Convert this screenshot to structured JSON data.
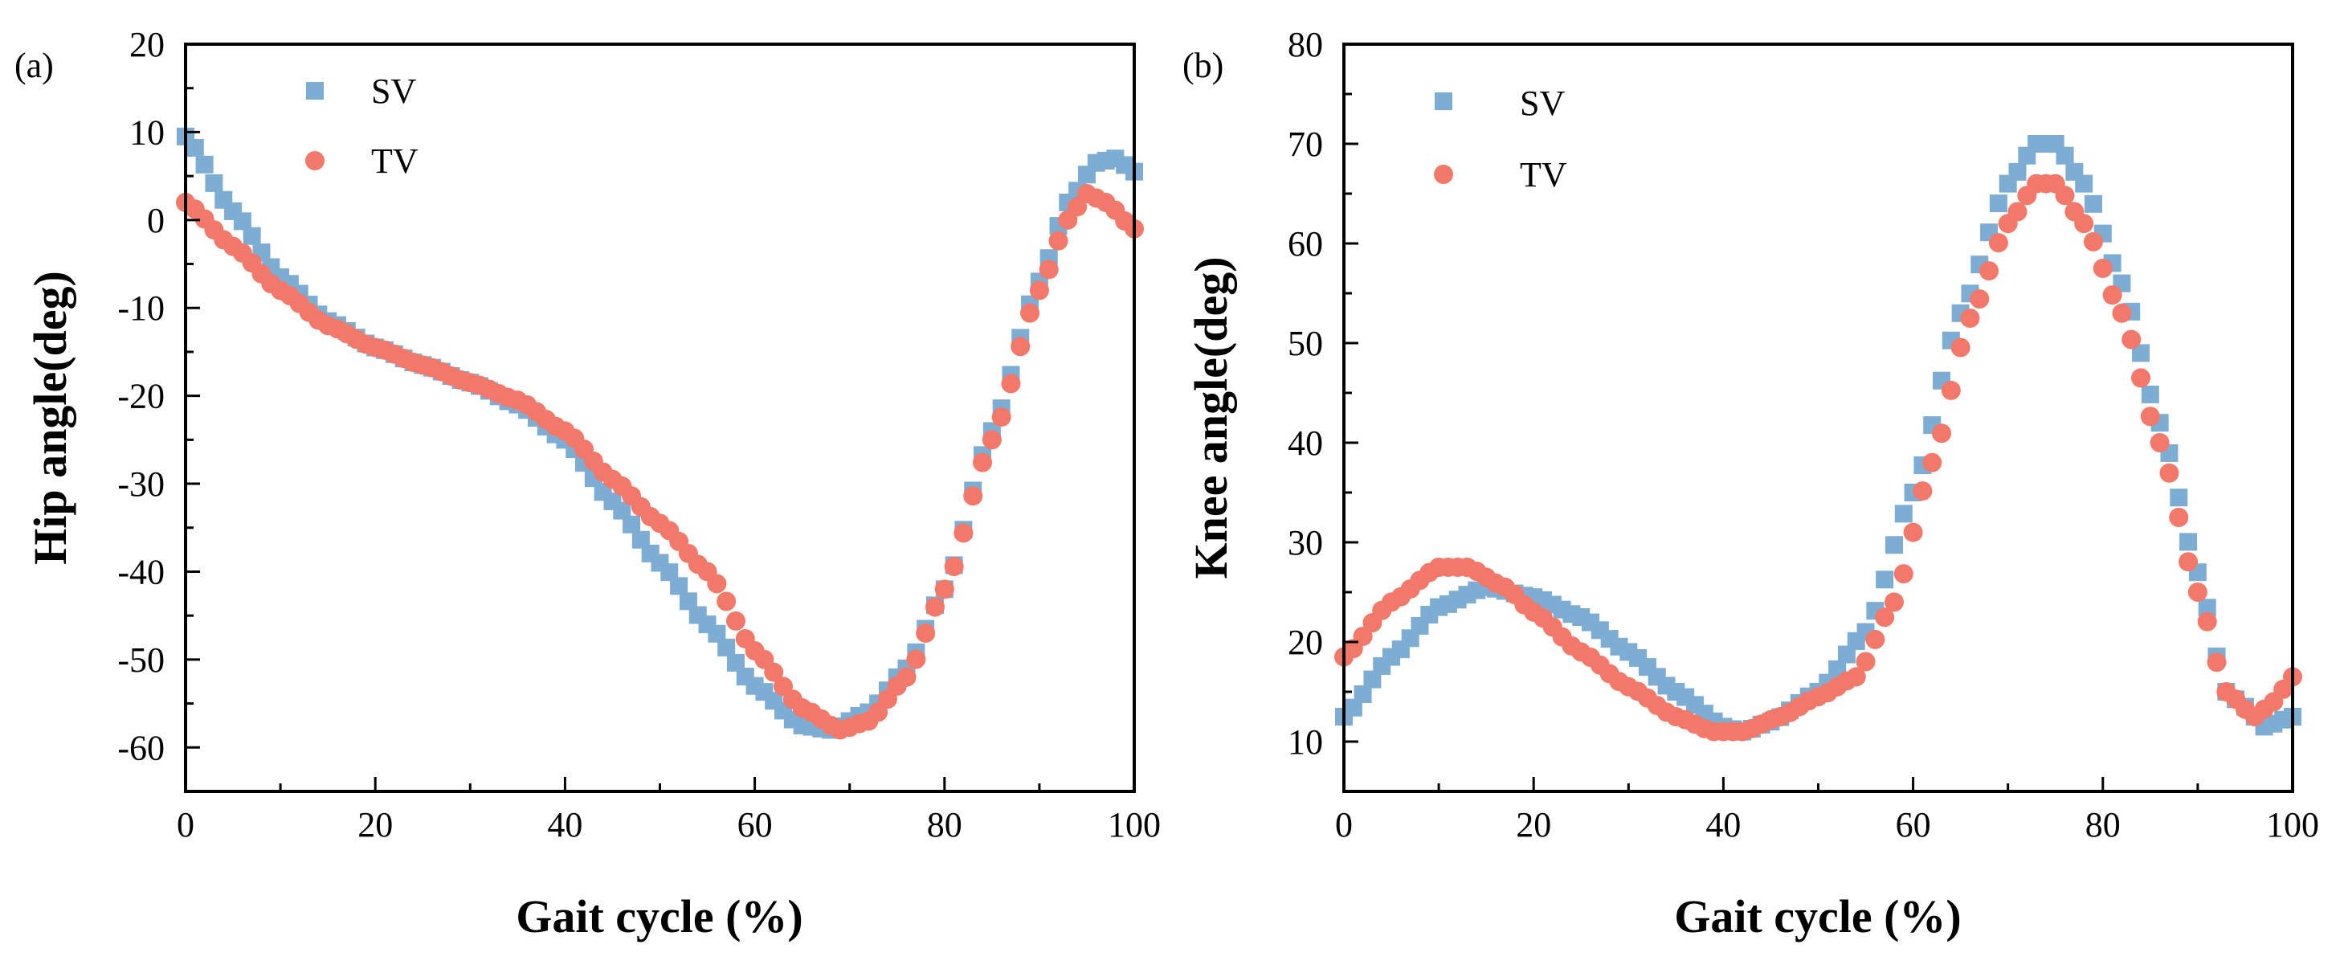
{
  "chart_data": [
    {
      "type": "scatter",
      "panel_label": "(a)",
      "xlabel": "Gait cycle (%)",
      "ylabel": "Hip angle(deg)",
      "xlim": [
        0,
        100
      ],
      "ylim": [
        -65,
        20
      ],
      "xticks": [
        0,
        20,
        40,
        60,
        80,
        100
      ],
      "yticks": [
        -60,
        -50,
        -40,
        -30,
        -20,
        -10,
        0,
        10,
        20
      ],
      "legend_position": "top-left",
      "series": [
        {
          "name": "SV",
          "marker": "square",
          "color": "#7eadd4",
          "knots": [
            [
              0,
              9.5
            ],
            [
              5,
              1
            ],
            [
              10,
              -6.5
            ],
            [
              15,
              -11.5
            ],
            [
              20,
              -14.5
            ],
            [
              25,
              -16.5
            ],
            [
              30,
              -18.5
            ],
            [
              35,
              -21
            ],
            [
              40,
              -25
            ],
            [
              45,
              -32
            ],
            [
              50,
              -39
            ],
            [
              55,
              -46
            ],
            [
              60,
              -53
            ],
            [
              65,
              -57.5
            ],
            [
              68,
              -58
            ],
            [
              72,
              -56
            ],
            [
              76,
              -51
            ],
            [
              80,
              -42
            ],
            [
              85,
              -24
            ],
            [
              90,
              -7
            ],
            [
              93,
              2
            ],
            [
              96,
              6.5
            ],
            [
              98,
              7
            ],
            [
              100,
              5.5
            ]
          ]
        },
        {
          "name": "TV",
          "marker": "circle",
          "color": "#f2786a",
          "knots": [
            [
              0,
              2
            ],
            [
              5,
              -3
            ],
            [
              10,
              -8
            ],
            [
              15,
              -12
            ],
            [
              20,
              -14.5
            ],
            [
              25,
              -16.5
            ],
            [
              30,
              -18.5
            ],
            [
              35,
              -20.5
            ],
            [
              40,
              -24
            ],
            [
              45,
              -29.5
            ],
            [
              50,
              -34.5
            ],
            [
              55,
              -40
            ],
            [
              60,
              -49
            ],
            [
              65,
              -55.5
            ],
            [
              69,
              -58
            ],
            [
              72,
              -57
            ],
            [
              76,
              -52
            ],
            [
              80,
              -42
            ],
            [
              85,
              -25
            ],
            [
              90,
              -8
            ],
            [
              93,
              0
            ],
            [
              95,
              3
            ],
            [
              97,
              2
            ],
            [
              100,
              -1
            ]
          ]
        }
      ]
    },
    {
      "type": "scatter",
      "panel_label": "(b)",
      "xlabel": "Gait cycle (%)",
      "ylabel": "Knee angle(deg)",
      "xlim": [
        0,
        100
      ],
      "ylim": [
        5,
        80
      ],
      "xticks": [
        0,
        20,
        40,
        60,
        80,
        100
      ],
      "yticks": [
        10,
        20,
        30,
        40,
        50,
        60,
        70,
        80
      ],
      "legend_position": "top-left",
      "series": [
        {
          "name": "SV",
          "marker": "square",
          "color": "#7eadd4",
          "knots": [
            [
              0,
              12.5
            ],
            [
              5,
              18.5
            ],
            [
              10,
              23.5
            ],
            [
              15,
              25.5
            ],
            [
              20,
              24.5
            ],
            [
              25,
              22.5
            ],
            [
              30,
              19
            ],
            [
              35,
              15
            ],
            [
              40,
              11.5
            ],
            [
              42,
              11
            ],
            [
              45,
              12
            ],
            [
              50,
              15
            ],
            [
              55,
              21
            ],
            [
              60,
              35
            ],
            [
              65,
              53
            ],
            [
              70,
              66
            ],
            [
              73,
              70
            ],
            [
              75,
              70
            ],
            [
              78,
              66
            ],
            [
              82,
              56
            ],
            [
              86,
              42
            ],
            [
              90,
              27
            ],
            [
              93,
              15
            ],
            [
              95,
              13.5
            ],
            [
              97,
              11.5
            ],
            [
              100,
              12.5
            ]
          ]
        },
        {
          "name": "TV",
          "marker": "circle",
          "color": "#f2786a",
          "knots": [
            [
              0,
              18.5
            ],
            [
              5,
              24
            ],
            [
              10,
              27.5
            ],
            [
              13,
              27.5
            ],
            [
              17,
              25.5
            ],
            [
              20,
              23
            ],
            [
              25,
              19
            ],
            [
              30,
              15.5
            ],
            [
              35,
              12.5
            ],
            [
              39,
              11
            ],
            [
              42,
              11
            ],
            [
              46,
              12.5
            ],
            [
              50,
              14.5
            ],
            [
              54,
              16.5
            ],
            [
              58,
              24
            ],
            [
              62,
              38
            ],
            [
              66,
              52.5
            ],
            [
              70,
              62
            ],
            [
              73,
              66
            ],
            [
              75,
              66
            ],
            [
              78,
              62
            ],
            [
              82,
              53
            ],
            [
              86,
              40
            ],
            [
              90,
              25
            ],
            [
              93,
              15
            ],
            [
              96,
              12.5
            ],
            [
              98,
              14
            ],
            [
              100,
              16.5
            ]
          ]
        }
      ]
    }
  ]
}
